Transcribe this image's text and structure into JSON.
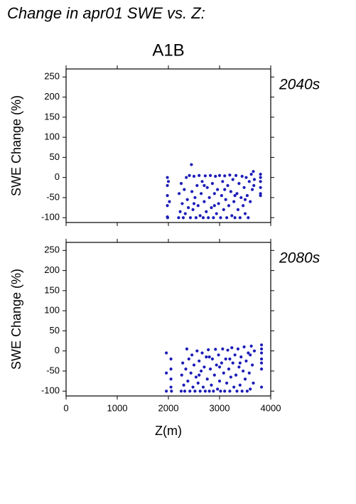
{
  "header": {
    "title": "Change in apr01 SWE vs. Z:",
    "column": "A1B"
  },
  "chart_data": [
    {
      "type": "scatter",
      "annotation": "2040s",
      "ylabel": "SWE Change (%)",
      "xlim": [
        0,
        4000
      ],
      "xticks": [
        0,
        1000,
        2000,
        3000,
        4000
      ],
      "ylim": [
        -112,
        270
      ],
      "yticks": [
        -100,
        -50,
        0,
        50,
        100,
        150,
        200,
        250
      ],
      "series": [
        {
          "color": "#1c1cb8",
          "x": [
            1980,
            1980,
            1980,
            1980,
            1980,
            1985,
            2000,
            2020,
            2200,
            2210,
            2230,
            2250,
            2270,
            2290,
            2310,
            2330,
            2350,
            2370,
            2390,
            2410,
            2430,
            2450,
            2460,
            2480,
            2500,
            2520,
            2540,
            2560,
            2580,
            2600,
            2620,
            2640,
            2660,
            2680,
            2700,
            2720,
            2740,
            2760,
            2780,
            2800,
            2820,
            2840,
            2860,
            2880,
            2900,
            2920,
            2940,
            2960,
            2980,
            3000,
            3020,
            3040,
            3060,
            3080,
            3100,
            3120,
            3140,
            3160,
            3180,
            3200,
            3220,
            3240,
            3260,
            3280,
            3300,
            3320,
            3340,
            3360,
            3380,
            3400,
            3420,
            3440,
            3460,
            3480,
            3500,
            3520,
            3540,
            3560,
            3580,
            3600,
            3620,
            3640,
            3660,
            3670,
            3680,
            3800,
            3800,
            3800,
            3800,
            3800,
            3800,
            2500,
            2700,
            2900,
            3100,
            3300,
            3500
          ],
          "y": [
            0,
            -20,
            -45,
            -70,
            -98,
            -100,
            -10,
            -60,
            -100,
            -40,
            -85,
            -15,
            -65,
            -100,
            -30,
            -90,
            0,
            -55,
            -75,
            5,
            -100,
            32,
            -35,
            -80,
            3,
            -50,
            -100,
            -20,
            -70,
            5,
            -95,
            -40,
            -10,
            -100,
            -60,
            4,
            -85,
            -25,
            -100,
            -50,
            5,
            -75,
            -15,
            -100,
            -40,
            3,
            -90,
            -30,
            -65,
            5,
            -100,
            -45,
            -10,
            -80,
            4,
            -55,
            -100,
            -20,
            -70,
            6,
            -35,
            -95,
            -5,
            -60,
            -100,
            5,
            -40,
            -80,
            -15,
            -100,
            -50,
            3,
            -70,
            -25,
            -90,
            0,
            -45,
            -100,
            -10,
            -60,
            8,
            -30,
            15,
            -20,
            -5,
            8,
            0,
            -10,
            -25,
            -40,
            -45,
            -65,
            -20,
            -70,
            -30,
            -45,
            -55
          ]
        }
      ]
    },
    {
      "type": "scatter",
      "annotation": "2080s",
      "ylabel": "SWE Change (%)",
      "xlabel": "Z(m)",
      "xlim": [
        0,
        4000
      ],
      "xticks": [
        0,
        1000,
        2000,
        3000,
        4000
      ],
      "ylim": [
        -112,
        270
      ],
      "yticks": [
        -100,
        -50,
        0,
        50,
        100,
        150,
        200,
        250
      ],
      "series": [
        {
          "color": "#1c1cb8",
          "x": [
            1960,
            1960,
            1960,
            2050,
            2050,
            2050,
            2050,
            2060,
            2250,
            2260,
            2280,
            2300,
            2320,
            2340,
            2360,
            2380,
            2400,
            2420,
            2440,
            2460,
            2480,
            2500,
            2520,
            2540,
            2560,
            2580,
            2600,
            2620,
            2640,
            2660,
            2680,
            2700,
            2720,
            2740,
            2760,
            2780,
            2800,
            2820,
            2840,
            2860,
            2880,
            2900,
            2920,
            2940,
            2960,
            2980,
            3000,
            3020,
            3040,
            3060,
            3080,
            3100,
            3120,
            3140,
            3160,
            3180,
            3200,
            3220,
            3240,
            3260,
            3280,
            3300,
            3320,
            3340,
            3360,
            3380,
            3400,
            3420,
            3440,
            3460,
            3480,
            3500,
            3520,
            3540,
            3560,
            3580,
            3600,
            3620,
            3640,
            3660,
            3680,
            3820,
            3820,
            3820,
            3820,
            3820,
            3820,
            3820,
            2600,
            2800,
            3000,
            3200,
            3400,
            3600
          ],
          "y": [
            -5,
            -55,
            -100,
            -20,
            -45,
            -70,
            -90,
            -100,
            -100,
            -60,
            -30,
            -85,
            -100,
            -45,
            5,
            -75,
            -20,
            -100,
            -55,
            -10,
            -90,
            -35,
            -100,
            -65,
            0,
            -80,
            -25,
            -100,
            -50,
            -5,
            -90,
            -40,
            -100,
            -15,
            -70,
            3,
            -100,
            -45,
            -85,
            -20,
            -100,
            -60,
            4,
            -35,
            -95,
            -10,
            -75,
            -100,
            -30,
            5,
            -55,
            -100,
            -20,
            -80,
            2,
            -45,
            -100,
            -65,
            8,
            -30,
            -90,
            -10,
            -60,
            -100,
            5,
            -40,
            -85,
            -15,
            -100,
            -50,
            10,
            -70,
            -25,
            -100,
            -5,
            -55,
            -95,
            12,
            -35,
            -80,
            0,
            15,
            5,
            -5,
            -20,
            -30,
            -45,
            -90,
            -60,
            -15,
            -40,
            -20,
            -30,
            -10
          ]
        }
      ]
    }
  ]
}
